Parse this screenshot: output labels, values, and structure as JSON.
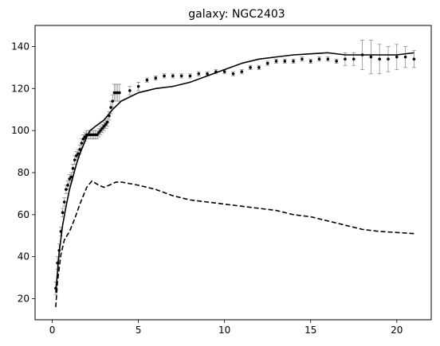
{
  "chart_data": {
    "type": "line",
    "title": "galaxy: NGC2403",
    "xlabel": "",
    "ylabel": "",
    "xlim": [
      -1.0,
      22.0
    ],
    "ylim": [
      10,
      150
    ],
    "xticks": [
      0,
      5,
      10,
      15,
      20
    ],
    "yticks": [
      20,
      40,
      60,
      80,
      100,
      120,
      140
    ],
    "grid": false,
    "legend": "none",
    "colors": {
      "points": "#000000",
      "errorbars": "#808080",
      "model": "#000000",
      "component": "#000000"
    },
    "series": [
      {
        "style": "points-with-errorbars",
        "x": [
          0.2,
          0.3,
          0.4,
          0.5,
          0.6,
          0.7,
          0.8,
          0.9,
          1.0,
          1.1,
          1.2,
          1.3,
          1.4,
          1.5,
          1.6,
          1.7,
          1.8,
          1.9,
          2.0,
          2.1,
          2.2,
          2.3,
          2.4,
          2.5,
          2.6,
          2.7,
          2.8,
          2.9,
          3.0,
          3.1,
          3.2,
          3.3,
          3.4,
          3.5,
          3.6,
          3.7,
          3.8,
          3.9,
          4.5,
          5.0,
          5.5,
          6.0,
          6.5,
          7.0,
          7.5,
          8.0,
          8.5,
          9.0,
          9.5,
          10.0,
          10.5,
          11.0,
          11.5,
          12.0,
          12.5,
          13.0,
          13.5,
          14.0,
          14.5,
          15.0,
          15.5,
          16.0,
          16.5,
          17.0,
          17.5,
          18.0,
          18.5,
          19.0,
          19.5,
          20.0,
          20.5,
          21.0
        ],
        "y": [
          25,
          37,
          43,
          52,
          61,
          66,
          72,
          74,
          77,
          78,
          82,
          86,
          88,
          89,
          91,
          94,
          96,
          97,
          98,
          98,
          98,
          98,
          98,
          98,
          98,
          99,
          100,
          101,
          102,
          103,
          104,
          107,
          111,
          114,
          118,
          118,
          118,
          118,
          119,
          121,
          124,
          125,
          126,
          126,
          126,
          126,
          127,
          127,
          128,
          128,
          127,
          128,
          130,
          130,
          132,
          133,
          133,
          133,
          134,
          133,
          134,
          134,
          133,
          134,
          134,
          136,
          135,
          134,
          134,
          135,
          135,
          134
        ],
        "err": [
          3,
          3,
          3,
          2,
          2,
          2,
          2,
          2,
          2,
          2,
          2,
          2,
          2,
          2,
          2,
          2,
          2,
          2,
          2,
          2,
          2,
          2,
          2,
          2,
          2,
          2,
          2,
          2,
          2,
          2,
          2,
          2,
          3,
          3,
          4,
          4,
          4,
          4,
          2,
          2,
          1,
          1,
          1,
          1,
          1,
          1,
          1,
          1,
          1,
          1,
          1,
          1,
          1,
          1,
          1,
          1,
          1,
          1,
          1,
          1,
          1,
          1,
          1,
          3,
          3,
          7,
          8,
          7,
          6,
          6,
          5,
          4
        ]
      },
      {
        "style": "solid-line",
        "x": [
          0.2,
          0.4,
          0.6,
          0.8,
          1.0,
          1.2,
          1.4,
          1.6,
          1.8,
          2.0,
          2.2,
          2.5,
          3.0,
          3.5,
          4.0,
          4.5,
          5.0,
          5.5,
          6.0,
          7.0,
          8.0,
          9.0,
          10.0,
          11.0,
          12.0,
          13.0,
          14.0,
          15.0,
          16.0,
          17.0,
          18.0,
          19.0,
          20.0,
          21.0
        ],
        "y": [
          23,
          42,
          55,
          64,
          72,
          78,
          84,
          89,
          93,
          97,
          100,
          102,
          105,
          110,
          114,
          116,
          118,
          119,
          120,
          121,
          123,
          126,
          129,
          132,
          134,
          135,
          136,
          136.5,
          137,
          136,
          136,
          136,
          136,
          137
        ]
      },
      {
        "style": "dashed-line",
        "x": [
          0.2,
          0.3,
          0.5,
          0.7,
          1.0,
          1.3,
          1.6,
          2.0,
          2.3,
          2.7,
          3.0,
          3.3,
          3.7,
          4.0,
          5.0,
          6.0,
          7.0,
          8.0,
          9.0,
          10.0,
          11.0,
          12.0,
          13.0,
          14.0,
          15.0,
          16.0,
          17.0,
          18.0,
          19.0,
          20.0,
          21.0
        ],
        "y": [
          16,
          28,
          41,
          48,
          52,
          58,
          65,
          73,
          76,
          74,
          73,
          74,
          75.5,
          75.5,
          74,
          72,
          69,
          67,
          66,
          65,
          64,
          63,
          62,
          60,
          59,
          57,
          55,
          53,
          52,
          51.5,
          51
        ]
      }
    ]
  }
}
